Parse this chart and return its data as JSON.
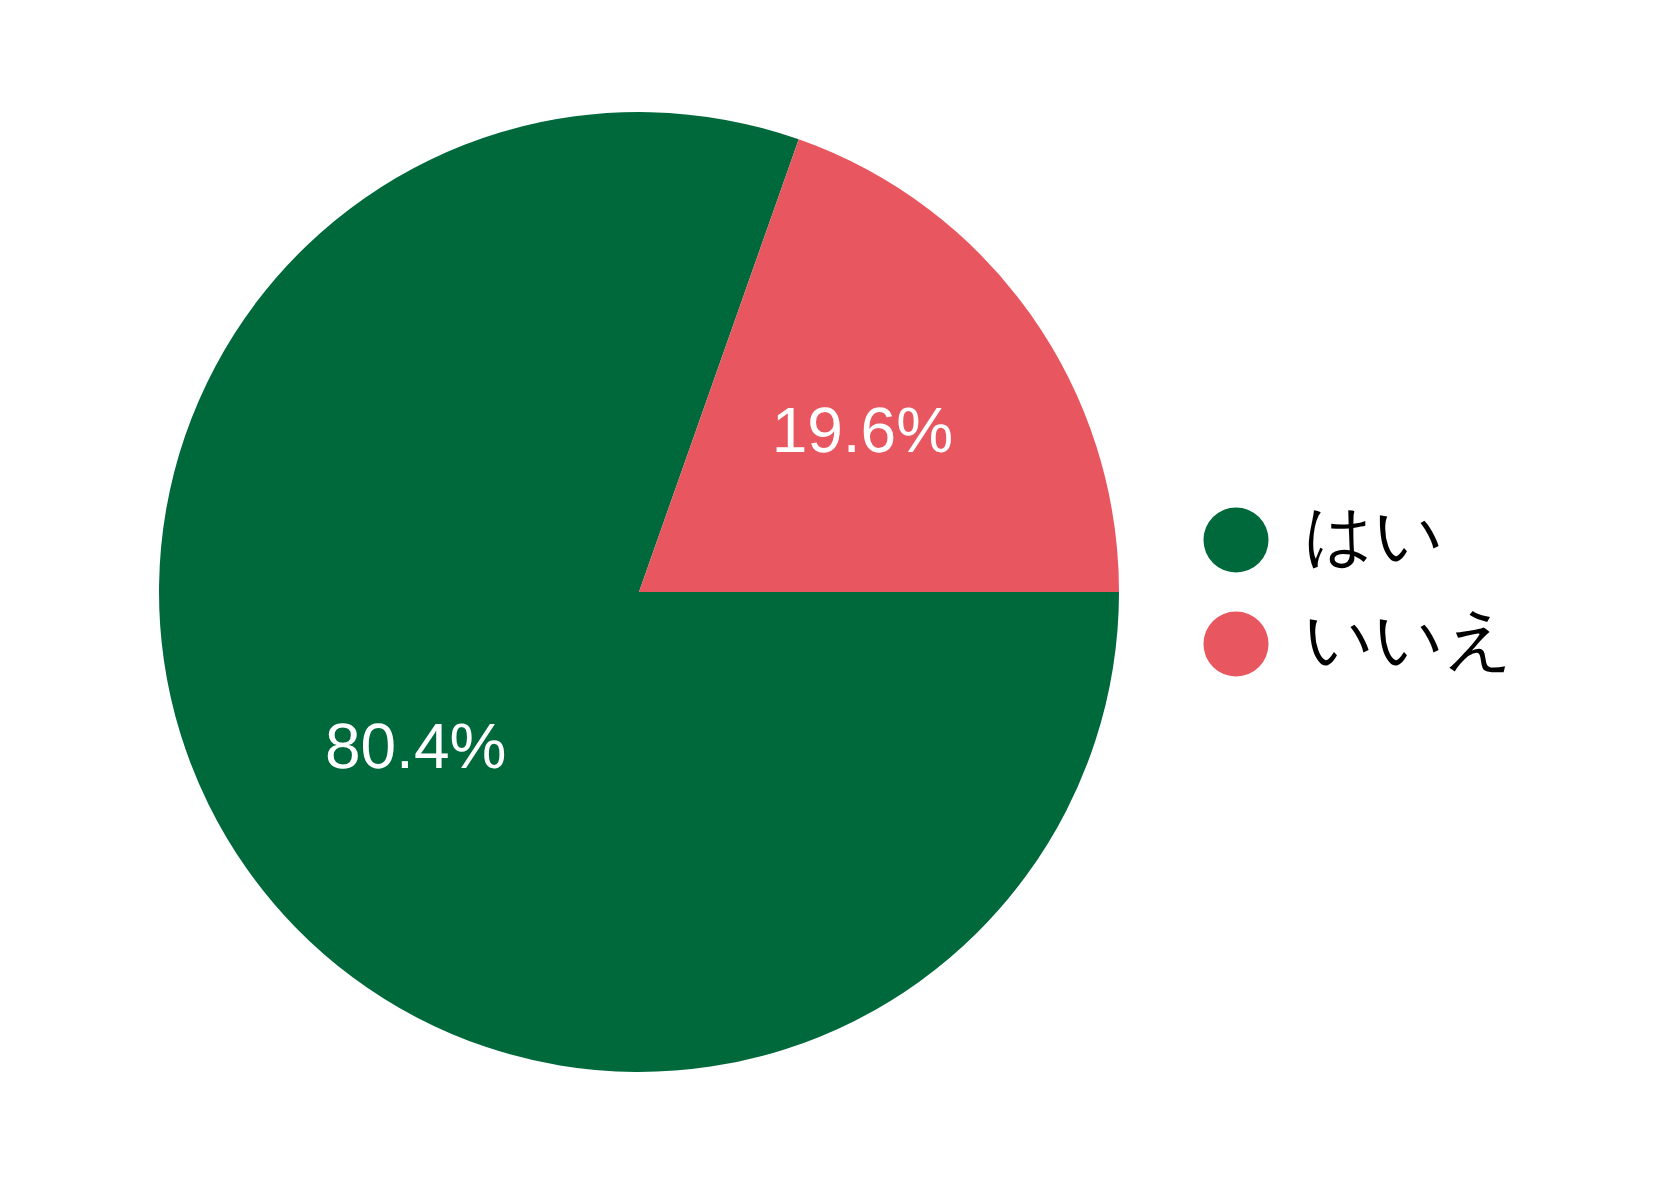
{
  "chart_data": {
    "type": "pie",
    "categories": [
      "はい",
      "いいえ"
    ],
    "values": [
      80.4,
      19.6
    ],
    "colors": [
      "#00693c",
      "#e8565f"
    ],
    "value_labels": [
      "80.4%",
      "19.6%"
    ],
    "legend": "right"
  }
}
